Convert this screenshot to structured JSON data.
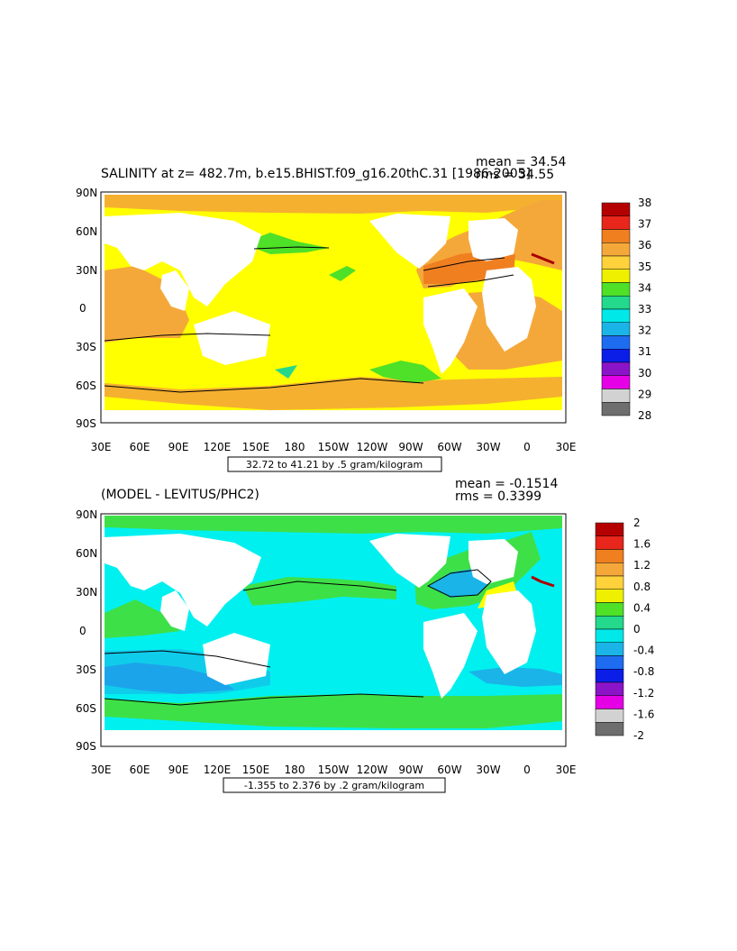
{
  "panels": [
    {
      "title": "SALINITY at z= 482.7m, b.e15.BHIST.f09_g16.20thC.31 [1986-2005]",
      "mean_text": "mean = 34.54",
      "rms_text": "rms = 34.55",
      "range_text": "32.72 to 41.21 by .5 gram/kilogram",
      "lat_labels": [
        "90N",
        "60N",
        "30N",
        "0",
        "30S",
        "60S",
        "90S"
      ],
      "lon_labels": [
        "30E",
        "60E",
        "90E",
        "120E",
        "150E",
        "180",
        "150W",
        "120W",
        "90W",
        "60W",
        "30W",
        "0",
        "30E"
      ],
      "colorbar": {
        "labels": [
          "38",
          "37",
          "36",
          "35",
          "34",
          "33",
          "32",
          "31",
          "30",
          "29",
          "28"
        ],
        "colors": [
          "#b40000",
          "#e8261c",
          "#f07f20",
          "#f5a83a",
          "#ffd23c",
          "#eef000",
          "#4fe028",
          "#24d88c",
          "#00e8e8",
          "#1ab4e8",
          "#1e6cf0",
          "#0a1ee8",
          "#8c14c8",
          "#e600e6",
          "#d2d2d2",
          "#6e6e6e"
        ]
      }
    },
    {
      "title": "(MODEL - LEVITUS/PHC2)",
      "mean_text": "mean = -0.1514",
      "rms_text": "rms = 0.3399",
      "range_text": "-1.355 to 2.376 by .2 gram/kilogram",
      "lat_labels": [
        "90N",
        "60N",
        "30N",
        "0",
        "30S",
        "60S",
        "90S"
      ],
      "lon_labels": [
        "30E",
        "60E",
        "90E",
        "120E",
        "150E",
        "180",
        "150W",
        "120W",
        "90W",
        "60W",
        "30W",
        "0",
        "30E"
      ],
      "colorbar": {
        "labels": [
          "2",
          "1.6",
          "1.2",
          "0.8",
          "0.4",
          "0",
          "-0.4",
          "-0.8",
          "-1.2",
          "-1.6",
          "-2"
        ],
        "colors": [
          "#b40000",
          "#e8261c",
          "#f07f20",
          "#f5a83a",
          "#ffd23c",
          "#eef000",
          "#4fe028",
          "#24d88c",
          "#00e8e8",
          "#1ab4e8",
          "#1e6cf0",
          "#0a1ee8",
          "#8c14c8",
          "#e600e6",
          "#d2d2d2",
          "#6e6e6e"
        ]
      }
    }
  ]
}
